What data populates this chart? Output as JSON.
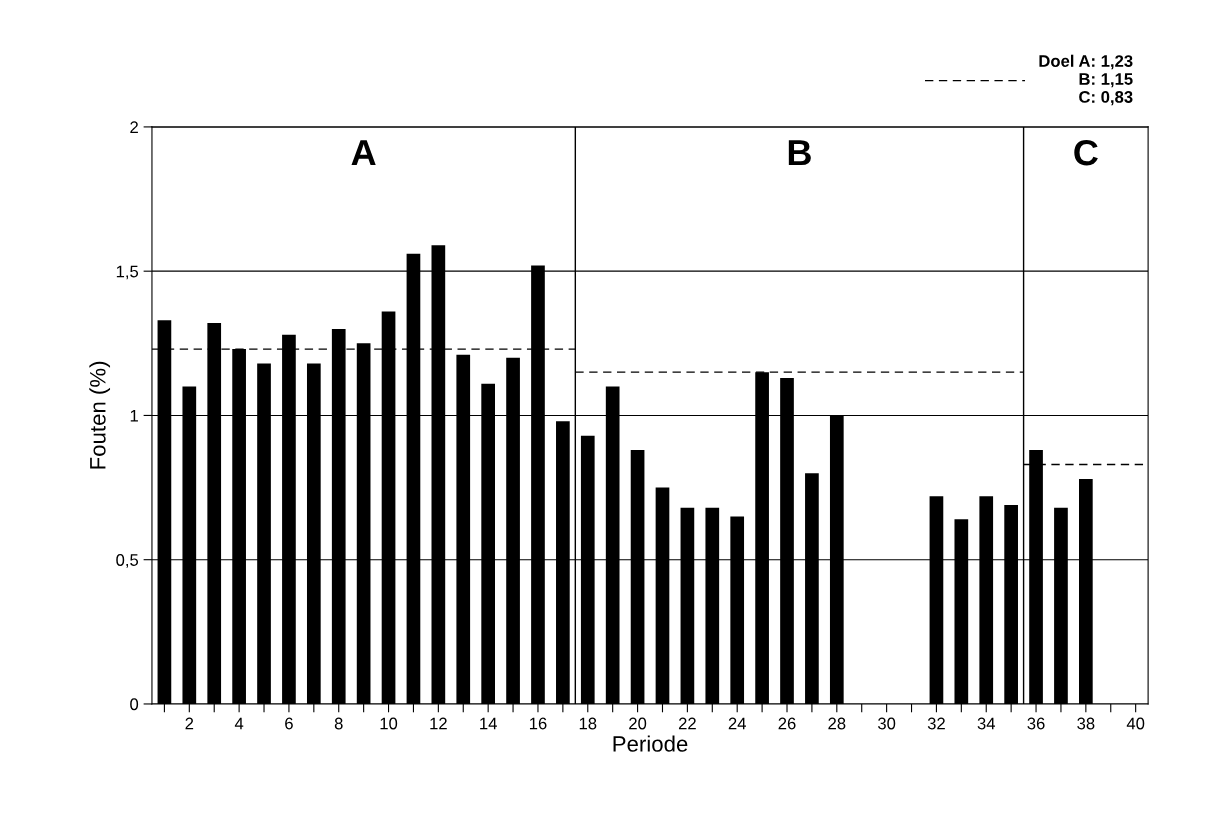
{
  "chart_data": {
    "type": "bar",
    "xlabel": "Periode",
    "ylabel": "Fouten (%)",
    "x": [
      1,
      2,
      3,
      4,
      5,
      6,
      7,
      8,
      9,
      10,
      11,
      12,
      13,
      14,
      15,
      16,
      17,
      18,
      19,
      20,
      21,
      22,
      23,
      24,
      25,
      26,
      27,
      28,
      29,
      30,
      31,
      32,
      33,
      34,
      35,
      36,
      37,
      38
    ],
    "series": [
      {
        "color": "#000000",
        "values": [
          1.33,
          1.1,
          1.32,
          1.23,
          1.18,
          1.28,
          1.18,
          1.3,
          1.25,
          1.36,
          1.56,
          1.59,
          1.21,
          1.11,
          1.2,
          1.52,
          0.98,
          0.93,
          1.1,
          0.88,
          0.75,
          0.68,
          0.68,
          0.65,
          1.15,
          1.13,
          0.8,
          1.0,
          null,
          null,
          null,
          0.72,
          0.64,
          0.72,
          0.69,
          0.88,
          0.68,
          0.78
        ]
      },
      {
        "type": "line",
        "name": "Doel A: 1,23\nB: 1,15\nC: 0,83",
        "color": "#000000",
        "line_style": "dashed",
        "x": [
          0.5,
          17.5
        ],
        "values": [
          1.23,
          1.23
        ]
      },
      {
        "type": "line",
        "color": "#000000",
        "line_style": "dashed",
        "x": [
          17.5,
          35.5
        ],
        "values": [
          1.15,
          1.15
        ]
      },
      {
        "type": "line",
        "color": "#000000",
        "line_style": "dashed",
        "x": [
          35.5,
          40.5
        ],
        "values": [
          0.83,
          0.83
        ]
      }
    ],
    "xlim": [
      0.5,
      40.5
    ],
    "xticks": [
      {
        "value": 1,
        "label": null
      },
      2,
      {
        "value": 3,
        "label": null
      },
      4,
      {
        "value": 5,
        "label": null
      },
      6,
      {
        "value": 7,
        "label": null
      },
      8,
      {
        "value": 9,
        "label": null
      },
      10,
      {
        "value": 11,
        "label": null
      },
      12,
      {
        "value": 13,
        "label": null
      },
      14,
      {
        "value": 15,
        "label": null
      },
      16,
      {
        "value": 17,
        "label": null
      },
      18,
      {
        "value": 19,
        "label": null
      },
      20,
      {
        "value": 21,
        "label": null
      },
      22,
      {
        "value": 23,
        "label": null
      },
      24,
      {
        "value": 25,
        "label": null
      },
      26,
      {
        "value": 27,
        "label": null
      },
      28,
      {
        "value": 29,
        "label": null
      },
      30,
      {
        "value": 31,
        "label": null
      },
      32,
      {
        "value": 33,
        "label": null
      },
      34,
      {
        "value": 35,
        "label": null
      },
      36,
      {
        "value": 37,
        "label": null
      },
      38,
      {
        "value": 39,
        "label": null
      },
      40
    ],
    "ylim": [
      0,
      2
    ],
    "yticks": [
      0,
      {
        "value": 0.5,
        "label": "0,5"
      },
      1,
      {
        "value": 1.5,
        "label": "1,5"
      },
      2
    ],
    "grid": "y",
    "ref_lines": [
      {
        "axis": "x",
        "value": 17.5,
        "color": "#000000"
      },
      {
        "axis": "x",
        "value": 35.5,
        "color": "#000000"
      }
    ],
    "annotations": [
      "A",
      "B",
      "C"
    ],
    "legend": "top right"
  }
}
